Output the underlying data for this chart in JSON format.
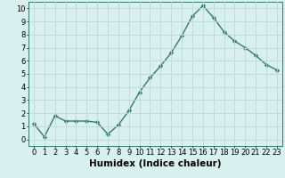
{
  "x": [
    0,
    1,
    2,
    3,
    4,
    5,
    6,
    7,
    8,
    9,
    10,
    11,
    12,
    13,
    14,
    15,
    16,
    17,
    18,
    19,
    20,
    21,
    22,
    23
  ],
  "y": [
    1.2,
    0.2,
    1.8,
    1.4,
    1.4,
    1.4,
    1.3,
    0.4,
    1.1,
    2.2,
    3.6,
    4.7,
    5.6,
    6.6,
    7.9,
    9.4,
    10.2,
    9.3,
    8.2,
    7.5,
    7.0,
    6.4,
    5.7,
    5.3
  ],
  "line_color": "#2e7d6e",
  "marker": "D",
  "marker_size": 2.2,
  "bg_color": "#d8f0ee",
  "grid_color": "#c0d8d4",
  "xlabel": "Humidex (Indice chaleur)",
  "xlabel_fontsize": 7.5,
  "ylim": [
    -0.5,
    10.5
  ],
  "xlim": [
    -0.5,
    23.5
  ],
  "yticks": [
    0,
    1,
    2,
    3,
    4,
    5,
    6,
    7,
    8,
    9,
    10
  ],
  "xticks": [
    0,
    1,
    2,
    3,
    4,
    5,
    6,
    7,
    8,
    9,
    10,
    11,
    12,
    13,
    14,
    15,
    16,
    17,
    18,
    19,
    20,
    21,
    22,
    23
  ],
  "tick_fontsize": 6.0,
  "line_width": 1.0
}
